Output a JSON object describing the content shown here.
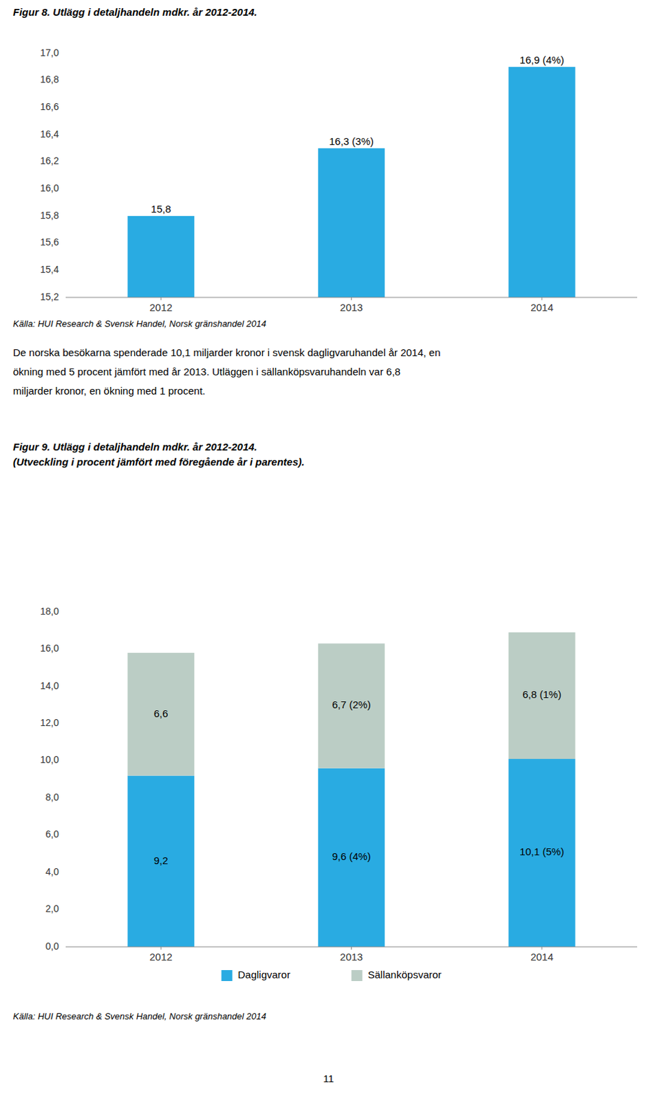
{
  "chart_data": [
    {
      "type": "bar",
      "title": "Figur 8. Utlägg i detaljhandeln mdkr. år 2012-2014.",
      "categories": [
        "2012",
        "2013",
        "2014"
      ],
      "values": [
        15.8,
        16.3,
        16.9
      ],
      "value_labels": [
        "15,8",
        "16,3 (3%)",
        "16,9 (4%)"
      ],
      "color": "#29ABE2",
      "ylim": [
        15.2,
        17.0
      ],
      "yticks": [
        {
          "value": 15.2,
          "label": "15,2"
        },
        {
          "value": 15.4,
          "label": "15,4"
        },
        {
          "value": 15.6,
          "label": "15,6"
        },
        {
          "value": 15.8,
          "label": "15,8"
        },
        {
          "value": 16.0,
          "label": "16,0"
        },
        {
          "value": 16.2,
          "label": "16,2"
        },
        {
          "value": 16.4,
          "label": "16,4"
        },
        {
          "value": 16.6,
          "label": "16,6"
        },
        {
          "value": 16.8,
          "label": "16,8"
        },
        {
          "value": 17.0,
          "label": "17,0"
        }
      ],
      "grid": false,
      "annotations": [
        "Källa: HUI Research & Svensk Handel, Norsk gränshandel 2014",
        "De norska besökarna spenderade 10,1 miljarder kronor i svensk dagligvaruhandel år 2014, en",
        "ökning med 5 procent jämfört med år 2013. Utläggen i sällanköpsvaruhandeln var 6,8",
        "miljarder kronor, en ökning med 1 procent."
      ]
    },
    {
      "type": "bar",
      "title": "Figur 9. Utlägg i detaljhandeln mdkr. år 2012-2014.",
      "subtitle": "(Utveckling i procent jämfört med föregående år i parentes).",
      "categories": [
        "2012",
        "2013",
        "2014"
      ],
      "series": [
        {
          "name": "Dagligvaror",
          "color": "#29ABE2",
          "values": [
            9.2,
            9.6,
            10.1
          ],
          "value_labels": [
            "9,2",
            "9,6 (4%)",
            "10,1 (5%)"
          ]
        },
        {
          "name": "Sällanköpsvaror",
          "color": "#BBCDC5",
          "values": [
            6.6,
            6.7,
            6.8
          ],
          "value_labels": [
            "6,6",
            "6,7 (2%)",
            "6,8 (1%)"
          ]
        }
      ],
      "stacked": true,
      "legend": "bottom",
      "ylim": [
        0,
        18.0
      ],
      "yticks": [
        {
          "value": 0.0,
          "label": "0,0"
        },
        {
          "value": 2.0,
          "label": "2,0"
        },
        {
          "value": 4.0,
          "label": "4,0"
        },
        {
          "value": 6.0,
          "label": "6,0"
        },
        {
          "value": 8.0,
          "label": "8,0"
        },
        {
          "value": 10.0,
          "label": "10,0"
        },
        {
          "value": 12.0,
          "label": "12,0"
        },
        {
          "value": 14.0,
          "label": "14,0"
        },
        {
          "value": 16.0,
          "label": "16,0"
        },
        {
          "value": 18.0,
          "label": "18,0"
        }
      ],
      "grid": false,
      "annotations": [
        "Källa: HUI Research & Svensk Handel, Norsk gränshandel 2014",
        "11"
      ]
    }
  ]
}
